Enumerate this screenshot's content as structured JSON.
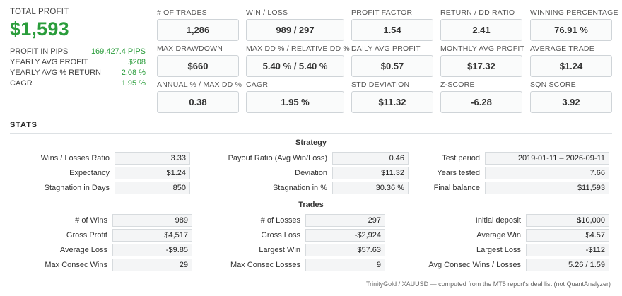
{
  "summary": {
    "total_profit_label": "TOTAL PROFIT",
    "total_profit_value": "$1,593",
    "rows": [
      {
        "label": "PROFIT IN PIPS",
        "value": "169,427.4 PIPS"
      },
      {
        "label": "YEARLY AVG PROFIT",
        "value": "$208"
      },
      {
        "label": "YEARLY AVG % RETURN",
        "value": "2.08 %"
      },
      {
        "label": "CAGR",
        "value": "1.95 %"
      }
    ]
  },
  "metrics": [
    {
      "label": "# OF TRADES",
      "value": "1,286"
    },
    {
      "label": "WIN / LOSS",
      "value": "989 / 297"
    },
    {
      "label": "PROFIT FACTOR",
      "value": "1.54"
    },
    {
      "label": "RETURN / DD RATIO",
      "value": "2.41"
    },
    {
      "label": "WINNING PERCENTAGE",
      "value": "76.91 %"
    },
    {
      "label": "MAX DRAWDOWN",
      "value": "$660"
    },
    {
      "label": "MAX DD % / RELATIVE DD %",
      "value": "5.40 % / 5.40 %"
    },
    {
      "label": "DAILY AVG PROFIT",
      "value": "$0.57"
    },
    {
      "label": "MONTHLY AVG PROFIT",
      "value": "$17.32"
    },
    {
      "label": "AVERAGE TRADE",
      "value": "$1.24"
    },
    {
      "label": "ANNUAL % / MAX DD %",
      "value": "0.38"
    },
    {
      "label": "CAGR",
      "value": "1.95 %"
    },
    {
      "label": "STD DEVIATION",
      "value": "$11.32"
    },
    {
      "label": "Z-SCORE",
      "value": "-6.28"
    },
    {
      "label": "SQN SCORE",
      "value": "3.92"
    }
  ],
  "stats": {
    "title": "STATS",
    "strategy": {
      "title": "Strategy",
      "col1": [
        {
          "label": "Wins / Losses Ratio",
          "value": "3.33"
        },
        {
          "label": "Expectancy",
          "value": "$1.24"
        },
        {
          "label": "Stagnation in Days",
          "value": "850"
        }
      ],
      "col2": [
        {
          "label": "Payout Ratio (Avg Win/Loss)",
          "value": "0.46"
        },
        {
          "label": "Deviation",
          "value": "$11.32"
        },
        {
          "label": "Stagnation in %",
          "value": "30.36 %"
        }
      ],
      "col3": [
        {
          "label": "Test period",
          "value": "2019-01-11 – 2026-09-11"
        },
        {
          "label": "Years tested",
          "value": "7.66"
        },
        {
          "label": "Final balance",
          "value": "$11,593"
        }
      ]
    },
    "trades": {
      "title": "Trades",
      "col1": [
        {
          "label": "# of Wins",
          "value": "989"
        },
        {
          "label": "Gross Profit",
          "value": "$4,517"
        },
        {
          "label": "Average Loss",
          "value": "-$9.85"
        },
        {
          "label": "Max Consec Wins",
          "value": "29"
        }
      ],
      "col2": [
        {
          "label": "# of Losses",
          "value": "297"
        },
        {
          "label": "Gross Loss",
          "value": "-$2,924"
        },
        {
          "label": "Largest Win",
          "value": "$57.63"
        },
        {
          "label": "Max Consec Losses",
          "value": "9"
        }
      ],
      "col3": [
        {
          "label": "Initial deposit",
          "value": "$10,000"
        },
        {
          "label": "Average Win",
          "value": "$4.57"
        },
        {
          "label": "Largest Loss",
          "value": "-$112"
        },
        {
          "label": "Avg Consec Wins / Losses",
          "value": "5.26 / 1.59"
        }
      ]
    }
  },
  "footer": "TrinityGold / XAUUSD — computed from the MT5 report's deal list (not QuantAnalyzer)"
}
